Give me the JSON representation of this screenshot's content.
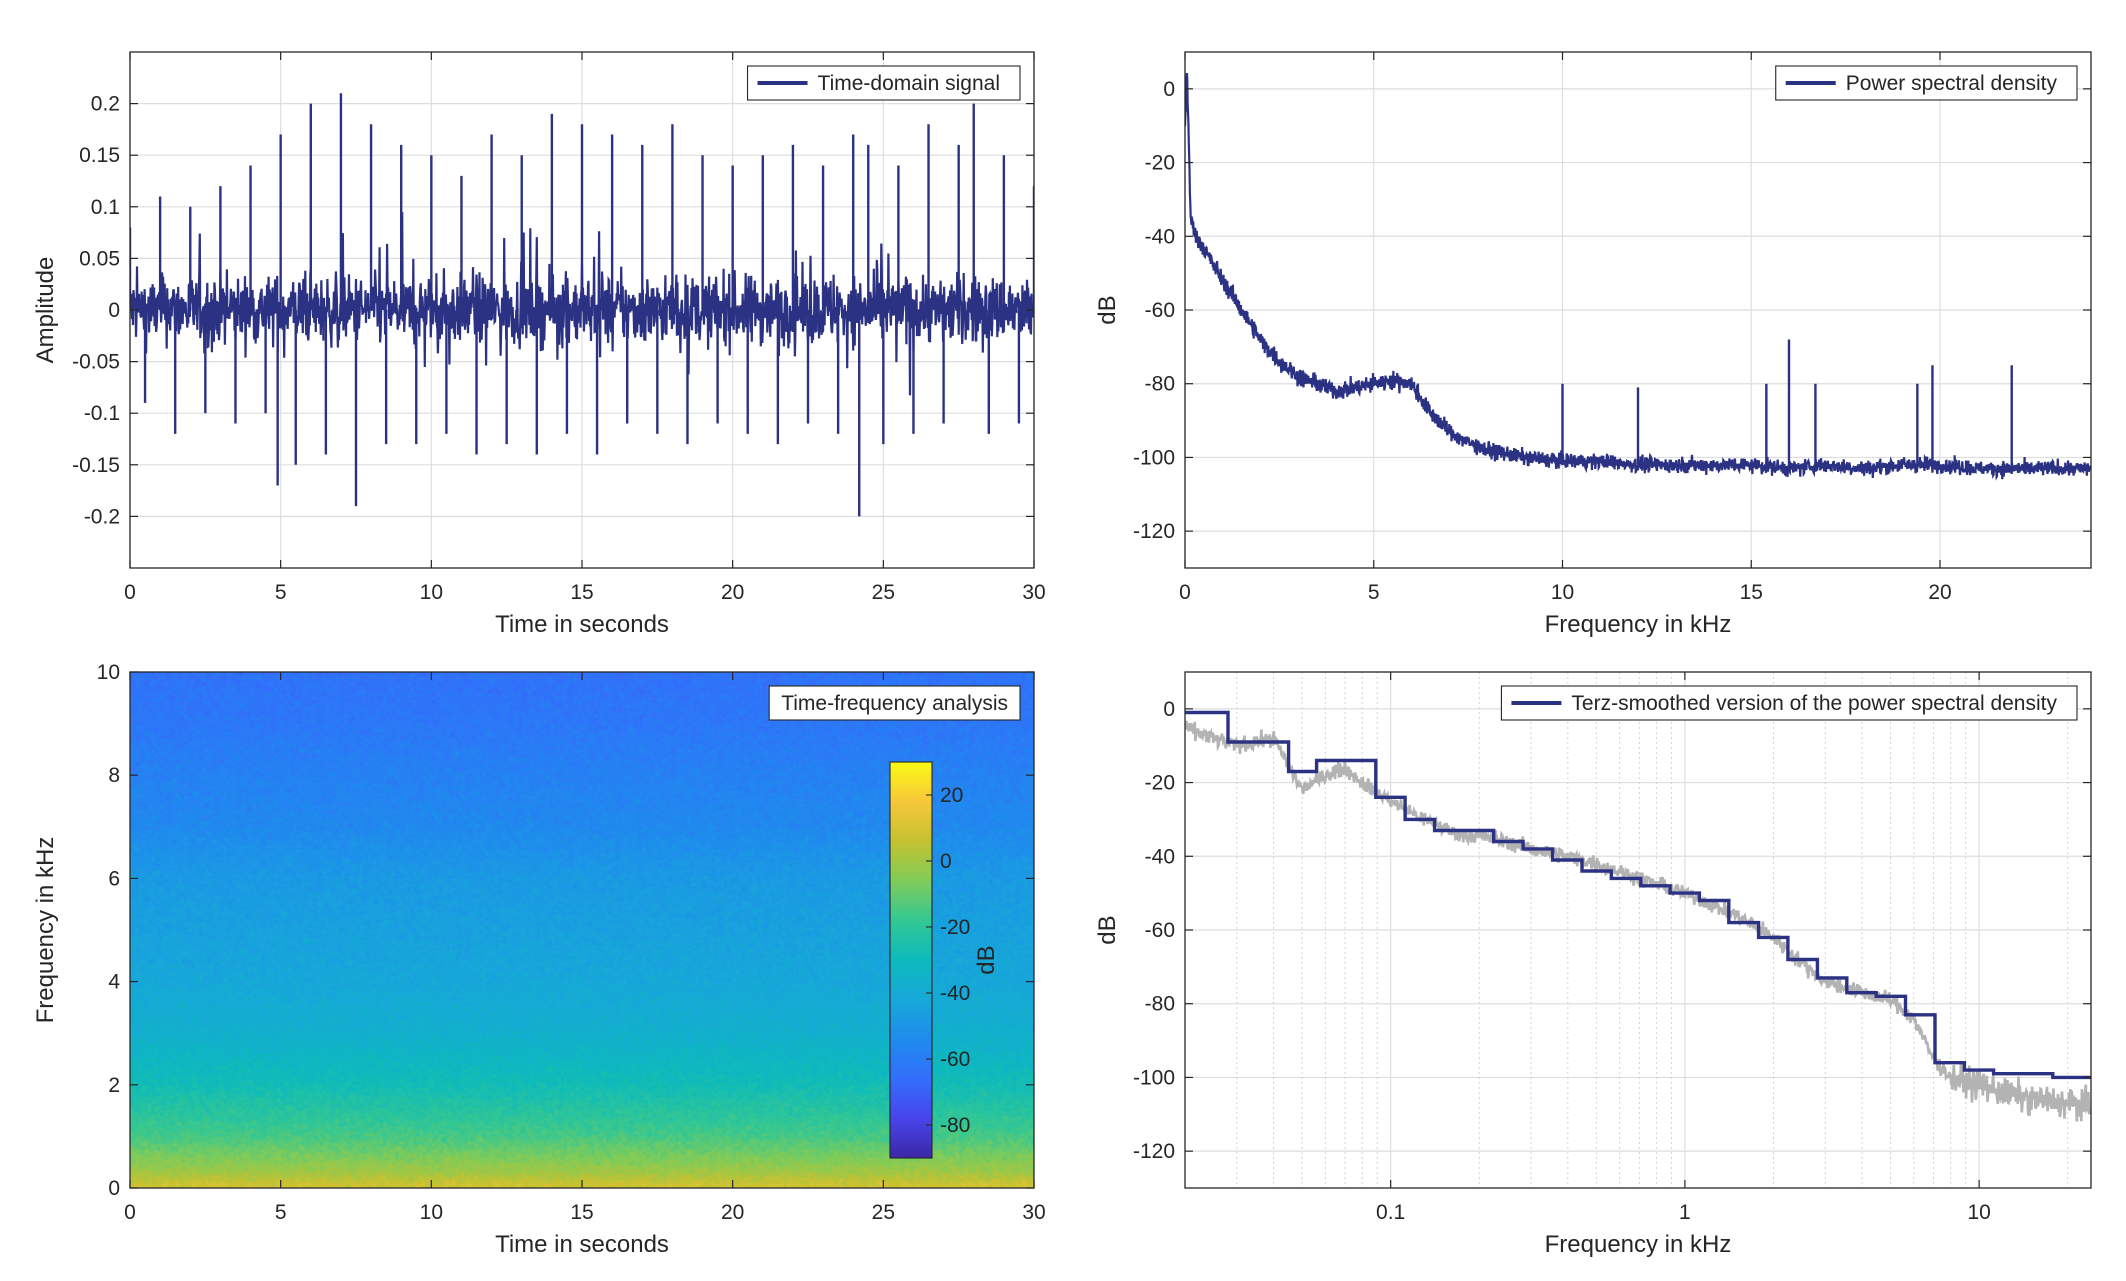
{
  "colors": {
    "series": "#2c3283",
    "raw_psd": "#b3b3b3",
    "axes": "#262626",
    "grid": "#dedede",
    "background": "#ffffff"
  },
  "chart_data": [
    {
      "id": "time-domain",
      "type": "line",
      "xlabel": "Time in seconds",
      "ylabel": "Amplitude",
      "xlim": [
        0,
        30
      ],
      "ylim": [
        -0.25,
        0.25
      ],
      "xticks": [
        0,
        5,
        10,
        15,
        20,
        25,
        30
      ],
      "xtick_labels": [
        "0",
        "5",
        "10",
        "15",
        "20",
        "25",
        "30"
      ],
      "yticks": [
        0.2,
        0.15,
        0.1,
        0.05,
        0,
        -0.05,
        -0.1,
        -0.15,
        -0.2
      ],
      "ytick_labels": [
        "0.2",
        "0.15",
        "0.1",
        "0.05",
        "0",
        "-0.05",
        "-0.1",
        "-0.15",
        "-0.2"
      ],
      "grid": true,
      "legend": "top-right",
      "series": [
        {
          "name": "Time-domain signal",
          "x": [
            0,
            0.5,
            1,
            1.5,
            2,
            2.5,
            3,
            3.5,
            4,
            4.5,
            4.9,
            5,
            5.5,
            6,
            6.5,
            7,
            7.5,
            8,
            8.5,
            9,
            9.5,
            10,
            10.5,
            11,
            11.5,
            12,
            12.5,
            13,
            13.5,
            14,
            14.5,
            15,
            15.5,
            16,
            16.5,
            17,
            17.5,
            18,
            18.5,
            19,
            19.5,
            20,
            20.5,
            21,
            21.5,
            22,
            22.5,
            23,
            23.5,
            24,
            24.2,
            24.5,
            25,
            25.5,
            26,
            26.5,
            27,
            27.5,
            28,
            28.5,
            29,
            29.5,
            30
          ],
          "values": [
            0.08,
            -0.09,
            0.11,
            -0.12,
            0.1,
            -0.1,
            0.12,
            -0.11,
            0.14,
            -0.1,
            -0.17,
            0.17,
            -0.15,
            0.2,
            -0.14,
            0.21,
            -0.19,
            0.18,
            -0.13,
            0.16,
            -0.13,
            0.15,
            -0.12,
            0.13,
            -0.14,
            0.17,
            -0.13,
            0.15,
            -0.14,
            0.19,
            -0.12,
            0.18,
            -0.14,
            0.17,
            -0.11,
            0.16,
            -0.12,
            0.18,
            -0.13,
            0.15,
            -0.11,
            0.14,
            -0.12,
            0.15,
            -0.13,
            0.16,
            -0.11,
            0.14,
            -0.12,
            0.17,
            -0.2,
            0.16,
            -0.13,
            0.14,
            -0.12,
            0.18,
            -0.11,
            0.16,
            0.2,
            -0.12,
            0.15,
            -0.11,
            0.12
          ]
        }
      ]
    },
    {
      "id": "psd-linear",
      "type": "line",
      "xlabel": "Frequency in kHz",
      "ylabel": "dB",
      "xlim": [
        0,
        24
      ],
      "ylim": [
        -130,
        10
      ],
      "xticks": [
        0,
        5,
        10,
        15,
        20
      ],
      "xtick_labels": [
        "0",
        "5",
        "10",
        "15",
        "20"
      ],
      "yticks": [
        0,
        -20,
        -40,
        -60,
        -80,
        -100,
        -120
      ],
      "ytick_labels": [
        "0",
        "-20",
        "-40",
        "-60",
        "-80",
        "-100",
        "-120"
      ],
      "grid": true,
      "legend": "top-right",
      "series": [
        {
          "name": "Power spectral density",
          "x": [
            0,
            0.05,
            0.15,
            0.3,
            0.6,
            1,
            1.5,
            2,
            2.5,
            3,
            3.5,
            4,
            4.5,
            5,
            5.5,
            6,
            6.5,
            7,
            7.5,
            8,
            9,
            10,
            11,
            12,
            13,
            14,
            15,
            16,
            17,
            18,
            19,
            20,
            21,
            22,
            23,
            24
          ],
          "values": [
            -10,
            5,
            -35,
            -40,
            -45,
            -52,
            -60,
            -68,
            -74,
            -78,
            -80,
            -82,
            -81,
            -80,
            -79,
            -80,
            -88,
            -93,
            -96,
            -98,
            -100,
            -101,
            -101,
            -102,
            -102,
            -102,
            -102,
            -103,
            -102,
            -103,
            -102,
            -102,
            -103,
            -103,
            -103,
            -103
          ]
        }
      ],
      "peaks": [
        {
          "x": 10.0,
          "value": -80
        },
        {
          "x": 12.0,
          "value": -81
        },
        {
          "x": 15.4,
          "value": -80
        },
        {
          "x": 16.0,
          "value": -68
        },
        {
          "x": 16.7,
          "value": -80
        },
        {
          "x": 19.4,
          "value": -80
        },
        {
          "x": 19.8,
          "value": -75
        },
        {
          "x": 21.9,
          "value": -75
        }
      ]
    },
    {
      "id": "spectrogram",
      "type": "heatmap",
      "xlabel": "Time in seconds",
      "ylabel": "Frequency in kHz",
      "xlim": [
        0,
        30
      ],
      "ylim": [
        0,
        10
      ],
      "xticks": [
        0,
        5,
        10,
        15,
        20,
        25,
        30
      ],
      "xtick_labels": [
        "0",
        "5",
        "10",
        "15",
        "20",
        "25",
        "30"
      ],
      "yticks": [
        0,
        2,
        4,
        6,
        8,
        10
      ],
      "ytick_labels": [
        "0",
        "2",
        "4",
        "6",
        "8",
        "10"
      ],
      "legend": "top-right",
      "legend_label": "Time-frequency analysis",
      "colorbar": {
        "label": "dB",
        "limits": [
          -90,
          30
        ],
        "ticks": [
          20,
          0,
          -20,
          -40,
          -60,
          -80
        ],
        "tick_labels": [
          "20",
          "0",
          "-20",
          "-40",
          "-60",
          "-80"
        ]
      },
      "profile": {
        "frequency_khz": [
          0,
          0.3,
          1,
          2,
          3,
          4,
          5,
          6,
          7,
          8,
          9,
          10
        ],
        "level_db": [
          10,
          0,
          -15,
          -28,
          -37,
          -42,
          -45,
          -48,
          -55,
          -58,
          -62,
          -64
        ]
      }
    },
    {
      "id": "psd-terz",
      "type": "line",
      "xlabel": "Frequency in kHz",
      "ylabel": "dB",
      "xscale": "log",
      "xlim": [
        0.02,
        24
      ],
      "ylim": [
        -130,
        10
      ],
      "xticks": [
        0.1,
        1,
        10
      ],
      "xtick_labels": [
        "0.1",
        "1",
        "10"
      ],
      "yticks": [
        0,
        -20,
        -40,
        -60,
        -80,
        -100,
        -120
      ],
      "ytick_labels": [
        "0",
        "-20",
        "-40",
        "-60",
        "-80",
        "-100",
        "-120"
      ],
      "grid": true,
      "legend": "top-right",
      "series": [
        {
          "name": "Terz-smoothed version of the power spectral density",
          "band_edges": [
            0.02,
            0.028,
            0.045,
            0.056,
            0.089,
            0.112,
            0.141,
            0.178,
            0.224,
            0.282,
            0.355,
            0.447,
            0.562,
            0.708,
            0.891,
            1.12,
            1.41,
            1.78,
            2.24,
            2.82,
            3.55,
            4.47,
            5.62,
            7.08,
            8.91,
            11.2,
            14.1,
            17.8,
            24
          ],
          "values": [
            -1,
            -9,
            -17,
            -14,
            -24,
            -30,
            -33,
            -33,
            -36,
            -38,
            -41,
            -44,
            -46,
            -48,
            -50,
            -52,
            -58,
            -62,
            -68,
            -73,
            -77,
            -78,
            -83,
            -96,
            -98,
            -99,
            -99,
            -100
          ]
        },
        {
          "name": "",
          "x": [
            0.02,
            0.025,
            0.03,
            0.04,
            0.05,
            0.06,
            0.07,
            0.08,
            0.1,
            0.13,
            0.17,
            0.22,
            0.3,
            0.4,
            0.5,
            0.7,
            1,
            1.5,
            2,
            2.5,
            3,
            4,
            5,
            6,
            7,
            8,
            10,
            12,
            15,
            20,
            24
          ],
          "values": [
            -5,
            -8,
            -10,
            -8,
            -22,
            -18,
            -16,
            -20,
            -25,
            -30,
            -34,
            -35,
            -38,
            -40,
            -42,
            -46,
            -50,
            -56,
            -62,
            -69,
            -74,
            -77,
            -79,
            -84,
            -95,
            -100,
            -102,
            -104,
            -106,
            -107,
            -108
          ]
        }
      ]
    }
  ]
}
